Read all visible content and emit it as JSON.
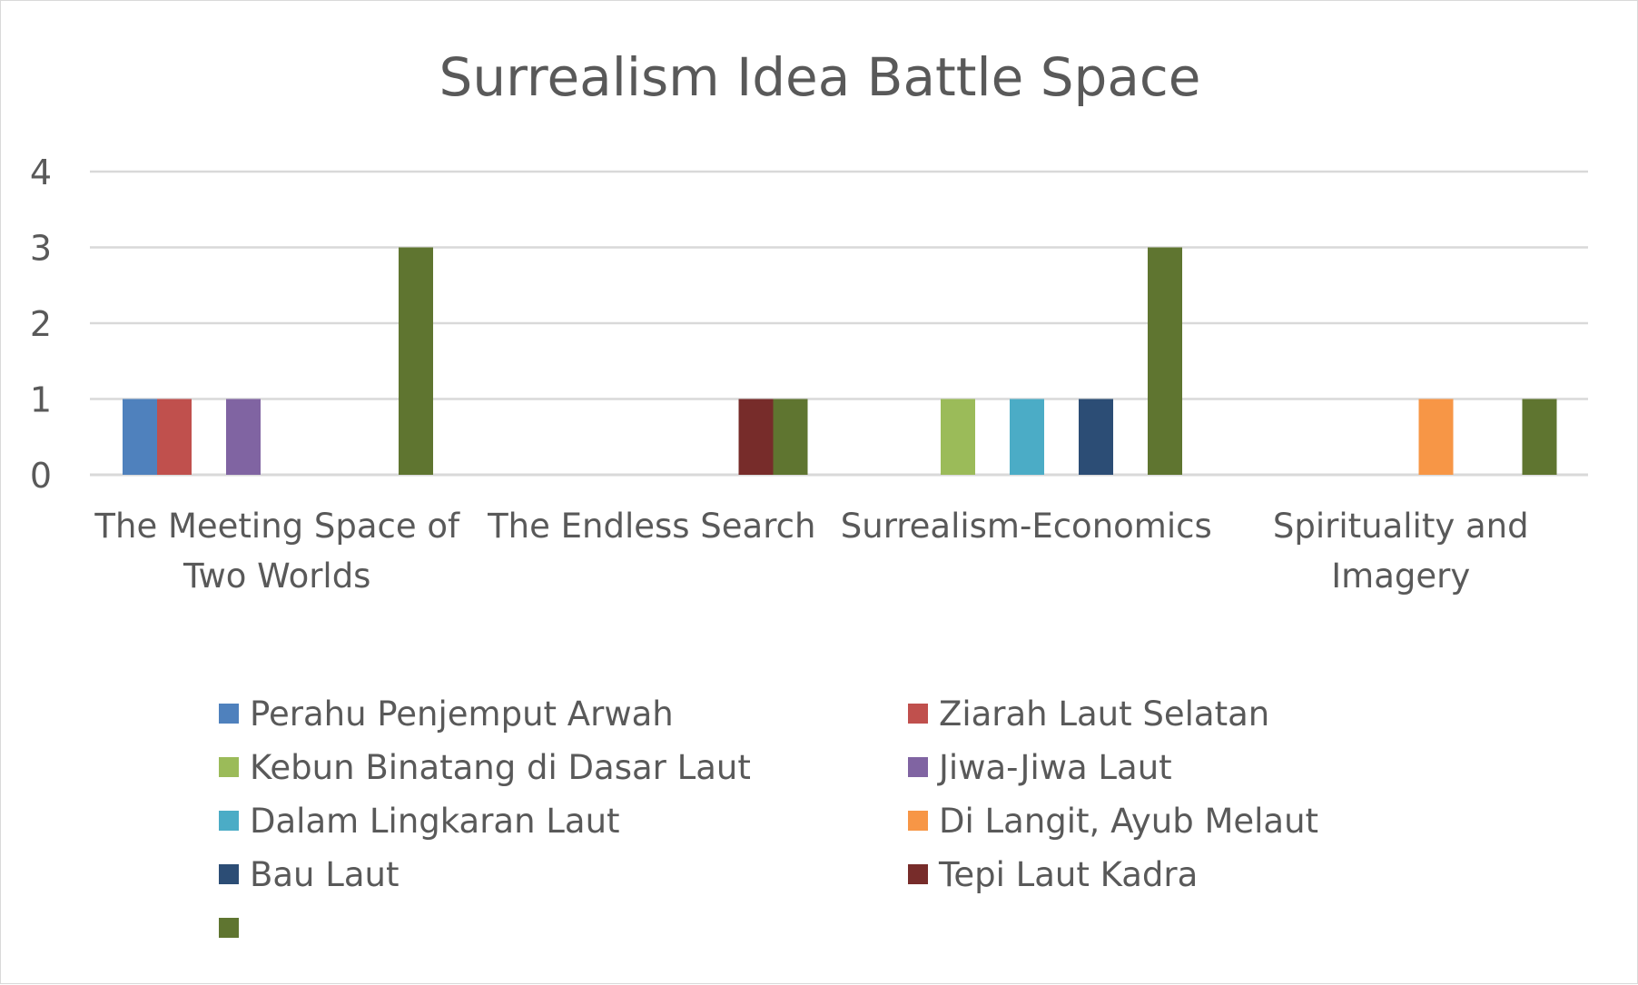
{
  "chart_data": {
    "type": "bar",
    "title": "Surrealism Idea Battle Space",
    "xlabel": "",
    "ylabel": "",
    "ylim": [
      0,
      4
    ],
    "yticks": [
      "0",
      "1",
      "2",
      "3",
      "4"
    ],
    "grid": true,
    "legend_position": "bottom",
    "categories": [
      [
        "The Meeting Space of",
        "Two Worlds"
      ],
      [
        "The Endless Search"
      ],
      [
        "Surrealism-Economics"
      ],
      [
        "Spirituality and",
        "Imagery"
      ]
    ],
    "series": [
      {
        "name": "Perahu Penjemput Arwah",
        "color": "#4F81BD",
        "values": [
          1,
          0,
          0,
          0
        ]
      },
      {
        "name": "Ziarah Laut Selatan",
        "color": "#C0504D",
        "values": [
          1,
          0,
          0,
          0
        ]
      },
      {
        "name": "Kebun Binatang di Dasar Laut",
        "color": "#9BBB59",
        "values": [
          0,
          0,
          1,
          0
        ]
      },
      {
        "name": "Jiwa-Jiwa Laut",
        "color": "#8064A2",
        "values": [
          1,
          0,
          0,
          0
        ]
      },
      {
        "name": "Dalam Lingkaran Laut",
        "color": "#4BACC6",
        "values": [
          0,
          0,
          1,
          0
        ]
      },
      {
        "name": "Di Langit, Ayub Melaut",
        "color": "#F79646",
        "values": [
          0,
          0,
          0,
          1
        ]
      },
      {
        "name": "Bau Laut",
        "color": "#2C4D75",
        "values": [
          0,
          0,
          1,
          0
        ]
      },
      {
        "name": "Tepi Laut Kadra",
        "color": "#772C2A",
        "values": [
          0,
          1,
          0,
          0
        ]
      },
      {
        "name": "",
        "color": "#5F7530",
        "values": [
          3,
          1,
          3,
          1
        ]
      }
    ]
  },
  "colors": {
    "gridline": "#d9d9d9",
    "text": "#595959",
    "border": "#d9d9d9"
  }
}
